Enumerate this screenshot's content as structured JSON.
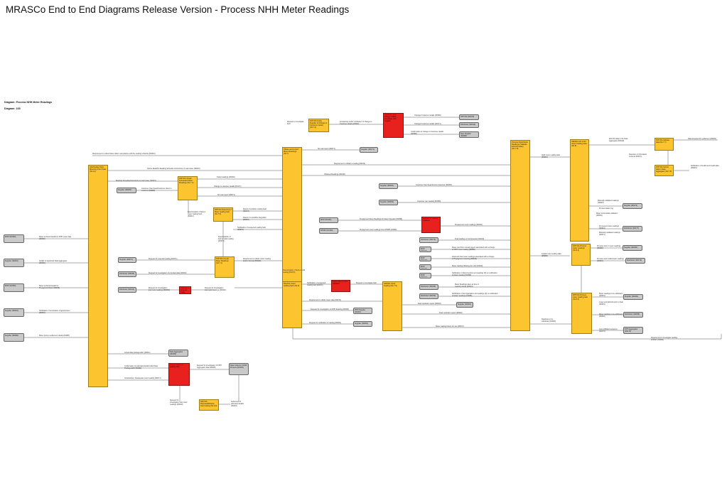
{
  "header": {
    "title": "MRASCo End to End Diagrams Release Version - Process NHH Meter Readings",
    "diagram_label": "Diagram: Process NHH Meter Readings",
    "diagram_number": "Diagram: 165"
  },
  "lanes": {
    "nhhdc": {
      "code": "NHH DC",
      "text": "Add/Update NHH Metering Point Data (N1.14)"
    },
    "create_readings": {
      "code": "NHH DC",
      "text": "Obtain and record Meter Readings (N1.7)"
    },
    "process_readings": {
      "code": "NHH DA",
      "text": "Process NHH Meter Readings (Validate EAC/AA Data) (N1.7.8)"
    },
    "validate_eac": {
      "code": "NHH DA",
      "text": "Validate and enter meter reading data (N1.8)"
    },
    "resolve": {
      "code": "NHH DC",
      "text": "Resolve meter reading fault (N1.9)"
    },
    "validate_main": {
      "code": "NHH DC",
      "text": "Validate meter reading (N1.7.9)"
    }
  },
  "boxes": {
    "notify_supplier_change": "NHH DC Notify Supplier of Change to Customer details (N1.7.6)",
    "nhh_data_agg": "NHH DA Validate data (N1.7.7)",
    "submit_eac": "NHH DA Submit data to Data Aggregator (N1.7.8)",
    "dc_reading_schedule": "NHH DC Obtain Scheduled Meter Readings (N1.7.4)",
    "determine_reading": "NHH DC Determine if Meter reading fault (N1.7.5)",
    "request_investigate": "NHH DC Request site visit / investigation (N1.7.3)",
    "obtain_special": "NHH DC Obtain special read (N1.7.2)",
    "create_reading_dc": "NHH DC Create Meter Readings (N1.7.1)",
    "resolve_invalid": "NHH DC Investigate reading fault (N1.9.3)",
    "confirm_create": "NHH DC Create/Confirm reading (N1.9.4)",
    "process_mr_update": "NHH DA Process meter readings (N1.8.2)",
    "process_da_fault": "NHH DA Process meter reading fault (N1.8.3)",
    "dispute_handle": "NHH DC Dispute/Withdraw final reading (N1.9.9)"
  },
  "reds": {
    "red_customer": "Customer detail change notified - investigate with Supplier",
    "red_consent": "Reading not received - chase agent",
    "red_reading": "Request for reading validated",
    "red_process": "Meter reading failed validation",
    "red_dispute": "Dispute raised on reading data",
    "red_bottom": "Reading disputed - raise change request"
  },
  "externals": {
    "mop_left_1": "MOP (D0150)",
    "supplier_left_1": "Supplier (D0010)",
    "mop_left_2": "MOP (D0150)",
    "supplier_left_2": "Supplier (D0010)",
    "supplier_left_3": "Supplier (D0086)",
    "supplier_a": "Supplier (D0005)",
    "supplier_b": "Supplier (D0071)",
    "distributor_a": "Distributor (D0036)",
    "distributor_b": "Distributor (D0010)",
    "supplier_c": "Supplier (D0171)",
    "supplier_top": "Supplier (D0171)",
    "nhh_da_a": "NHH DA (D0015)",
    "distributor_top": "Distributor (D0019)",
    "new_supplier": "New Supplier (D0086)",
    "supplier_d": "Supplier (D0004)",
    "supplier_e": "Supplier (D0039)",
    "mop_mid_1": "MOP (D0130)",
    "ppmip": "PPMIP (D0196)",
    "distributor_mid": "Distributor (D0170)",
    "mop_mid_2": "MOP (D0152)",
    "mop_mid_3": "MOP (D0149)",
    "mop_mid_4": "MOP (D0168)",
    "mop_mid_5": "MOP (D0001)",
    "distributor_c": "Distributor (D0036)",
    "distributor_d": "Distributor (D0010)",
    "supplier_f": "Supplier (D0002)",
    "ppm_supplier": "PPM Supplier (D0001)",
    "supplier_g": "Supplier (D0052)",
    "supplier_h": "Supplier (D0175)",
    "dc_a": "Distributor (D0002)",
    "dc_b": "Distributor (D0110)",
    "supplier_r1": "Supplier (D0179)",
    "distributor_r1": "Distributor (D0177)",
    "supplier_r2": "Supplier (D0036)",
    "distributor_r2": "Distributor (D0179)",
    "supplier_r3": "Supplier (D0199)",
    "distributor_r3": "Distributor (D0095)",
    "data_agg": "Data Aggregator (D0095)",
    "nhhda_bottom": "NHH Aggregator (D0170)",
    "mop_bottom": "Data Collector (MOP) Process (D0152)"
  },
  "labels": {
    "l1": "Requirement to collect Meter data in accordance with the reading schedule (D0010)",
    "l2": "Advice Read/No Reading Schedule Instructions to read meter (D0001)",
    "l3": "Meter technical details for NHH meter data (D0150)",
    "l4": "Details of appointed Data Aggregator (D0153)",
    "l5": "Meter technical details for Prepayment Meter (D0150)",
    "l6": "Notification of termination of appointment (D0151)",
    "l7": "Meter point to settlement details (D0087)",
    "l8": "Reading Schedule/Instructions to read meter (D0072)",
    "l9": "Customer Own Read/Customer direct to customer (D0086)",
    "l10": "Request for a special reading (D0071)",
    "l11": "Request for investigation of provided data (D0032)",
    "l12": "Request for investigation into meter readings (D0001)",
    "l13": "Request for investigation into meter readings (D0002)",
    "l14": "Determination of fault in meter reading fault (D0012)",
    "l15": "Requirement to obtain meter reading and/or visit site (D0000)",
    "l16": "Determination of fault or valid reading (D0073)",
    "l17": "Actual data package EAC (D0011)",
    "l18": "Confirmation of estimated details Initial Data Package EAC (D0062)",
    "l19": "Outstanding / Inadequate meter reading (D0071)",
    "l20": "Request for investigation of NHH Aggregator data (D0005)",
    "l21": "Settlement of estimated details (D0204)",
    "l22": "Requirement to obtain meter data (D0152)",
    "l23": "Notification of changed details to meter owners (D0152)",
    "l24": "Failed readings (D0002)",
    "l25": "Change to customer details (D0171)",
    "l26": "No read report (D0071)",
    "l27": "Result of possible reading fault (D0172)",
    "l28": "Result of a possible integration (D0072)",
    "l29": "Notification of suspected reading fault (D0073)",
    "l30": "Request to investigate fault",
    "l31": "Confirmation of change to Customer details (D0086)",
    "l32": "Changed Customer details (D0086)",
    "l33": "Changed Customer details (D0171)",
    "l34": "Forwarding and/or verification of change to Customer details (D0002)",
    "l35": "Changed Customer Details (D0074)",
    "l36": "No read report (D0071)",
    "l37": "Requirement to Obtain a reading (D0132)",
    "l38": "Obtained Readings (D0010)",
    "l39": "Customer Own Read from/to Customer (D0005)",
    "l40": "Customer own reading (D0086)",
    "l41": "Prepayment Meter Readings for Meter Operator (D0098)",
    "l42": "Prepayment meter readings from PPMIP (D0096)",
    "l43": "Prepayment meter readings (D0010)",
    "l44": "Final reading on Compression (D0010)",
    "l45": "Meter read from relevant agent associated with a change to NHH meter reading (D0086)",
    "l46": "Initial and final meter readings associated with a change to Prepayment metering (D0046)",
    "l47": "Meter reading following site visit (D0010)",
    "l48": "Notification of disconnection and readings (D) on notification of defect reading (D0096)",
    "l49": "Meter Readings taken at time of metering works (D0010)",
    "l50": "Notification of old registration and readings (D) on notification of defect readings (D0085)",
    "l51": "Fault resolution report (D0004)",
    "l52": "Fault resolution report (D0002)",
    "l53": "Meter reading history for site (D0072)",
    "l54": "Requirement to obtain special meter reading (D0171)",
    "l55": "Valid meter reading data (D0010)",
    "l56": "Invalid meter reading data (D0086)",
    "l57": "EAC/AA data to the Data Aggregator (D0019)",
    "l58": "Rejection of information received (D0071)",
    "l59": "Data accepted for settlement (D0023)",
    "l60": "Notification of Invalid and Invalid data (D0023)",
    "l61": "Manually validated readings (D0024)",
    "l62": "Process failure log",
    "l63": "Meter point details validation (D0152)",
    "l64": "Processed meter readings (D0010)",
    "l65": "Manually validated readings (D0071)",
    "l66": "Previous and or meter readings (D0086)",
    "l67": "Previous and invalid meter readings (D0010)",
    "l68": "Meter readings to be withdrawn (D0001)",
    "l69": "Lower and EAC/AA prior to fault (D0019)",
    "l70": "Meter readings to be withdrawn (D0052)",
    "l71": "Last validated sequence (D0170)",
    "l72": "Requirement to investigate reading problem (D0002)",
    "l73": "Meter technical validation",
    "l74": "Meter point data to Settlement",
    "l75": "Changed Customer details (D0171)",
    "l76": "Notification of readings and usage data (D0088)",
    "l77": "Request for investigation of MOP Reading (D0005)",
    "l78": "Request to obtain meter data (D0002)",
    "l79": "Readings to be withdrawn (D0041)",
    "l80": "Notification of suspected reading fault (D0001)",
    "l81": "Requirement to obtain special meter reading (D0171)",
    "l82": "Readings to be withdrawn (D0002)",
    "l83": "Request for investigation of NHH Aggregator data (D0005)",
    "l84": "Request for notification of reading (D0001)",
    "l85": "Settlement of estimated details (D0204)"
  }
}
